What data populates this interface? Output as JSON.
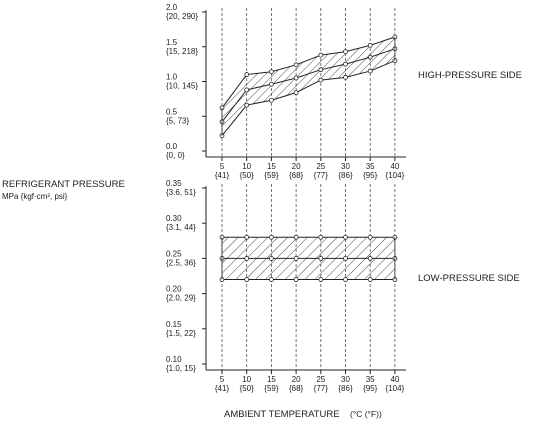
{
  "y_label": {
    "line1": "REFRIGERANT PRESSURE",
    "line2": "MPa {kgf·cm², psi}"
  },
  "x_label": "AMBIENT TEMPERATURE",
  "x_unit": "(°C (°F))",
  "x_ticks": [
    {
      "c": "5",
      "f": "{41}"
    },
    {
      "c": "10",
      "f": "{50}"
    },
    {
      "c": "15",
      "f": "{59}"
    },
    {
      "c": "20",
      "f": "{68}"
    },
    {
      "c": "25",
      "f": "{77}"
    },
    {
      "c": "30",
      "f": "{86}"
    },
    {
      "c": "35",
      "f": "{95}"
    },
    {
      "c": "40",
      "f": "{104}"
    }
  ],
  "high_side": {
    "label": "HIGH-PRESSURE SIDE",
    "y_ticks": [
      {
        "v": 0.0,
        "mpa": "0.0",
        "alt": "{0, 0}"
      },
      {
        "v": 0.5,
        "mpa": "0.5",
        "alt": "{5, 73}"
      },
      {
        "v": 1.0,
        "mpa": "1.0",
        "alt": "{10, 145}"
      },
      {
        "v": 1.5,
        "mpa": "1.5",
        "alt": "{15, 218}"
      },
      {
        "v": 2.0,
        "mpa": "2.0",
        "alt": "{20, 290}"
      }
    ]
  },
  "low_side": {
    "label": "LOW-PRESSURE SIDE",
    "y_ticks": [
      {
        "v": 0.1,
        "mpa": "0.10",
        "alt": "{1.0, 15}"
      },
      {
        "v": 0.15,
        "mpa": "0.15",
        "alt": "{1.5, 22}"
      },
      {
        "v": 0.2,
        "mpa": "0.20",
        "alt": "{2.0, 29}"
      },
      {
        "v": 0.25,
        "mpa": "0.25",
        "alt": "{2.5, 36}"
      },
      {
        "v": 0.3,
        "mpa": "0.30",
        "alt": "{3.1, 44}"
      },
      {
        "v": 0.35,
        "mpa": "0.35",
        "alt": "{3.6, 51}"
      }
    ]
  },
  "chart_data": [
    {
      "type": "area",
      "x": [
        5,
        10,
        15,
        20,
        25,
        30,
        35,
        40
      ],
      "ylim": [
        0,
        2.0
      ],
      "series": [
        {
          "values": [
            0.62,
            1.1,
            1.14,
            1.24,
            1.38,
            1.43,
            1.52,
            1.64
          ]
        },
        {
          "values": [
            0.42,
            0.88,
            0.96,
            1.05,
            1.17,
            1.25,
            1.35,
            1.47
          ]
        },
        {
          "values": [
            0.22,
            0.66,
            0.73,
            0.84,
            1.02,
            1.06,
            1.15,
            1.3
          ]
        }
      ]
    },
    {
      "type": "area",
      "x": [
        5,
        10,
        15,
        20,
        25,
        30,
        35,
        40
      ],
      "ylim": [
        0.1,
        0.35
      ],
      "series": [
        {
          "values": [
            0.28,
            0.28,
            0.28,
            0.28,
            0.28,
            0.28,
            0.28,
            0.28
          ]
        },
        {
          "values": [
            0.25,
            0.25,
            0.25,
            0.25,
            0.25,
            0.25,
            0.25,
            0.25
          ]
        },
        {
          "values": [
            0.22,
            0.22,
            0.22,
            0.22,
            0.22,
            0.22,
            0.22,
            0.22
          ]
        }
      ]
    }
  ],
  "colors": {
    "ink": "#222222",
    "grid": "#555555"
  }
}
